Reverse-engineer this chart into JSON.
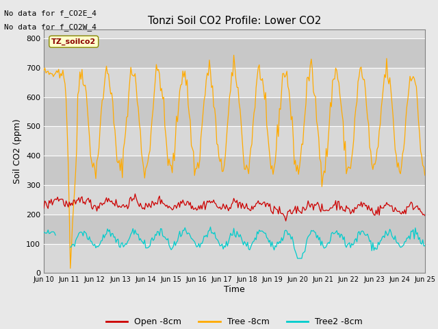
{
  "title": "Tonzi Soil CO2 Profile: Lower CO2",
  "xlabel": "Time",
  "ylabel": "Soil CO2 (ppm)",
  "ylim": [
    0,
    830
  ],
  "yticks": [
    0,
    100,
    200,
    300,
    400,
    500,
    600,
    700,
    800
  ],
  "bg_color": "#e8e8e8",
  "plot_bg_color": "#dcdcdc",
  "annotations": [
    "No data for f_CO2E_4",
    "No data for f_CO2W_4"
  ],
  "legend_label": "TZ_soilco2",
  "series_labels": [
    "Open -8cm",
    "Tree -8cm",
    "Tree2 -8cm"
  ],
  "series_colors": [
    "#cc0000",
    "#ffaa00",
    "#00cccc"
  ],
  "xtick_labels": [
    "Jun 10",
    "Jun 11",
    "Jun 12",
    "Jun 13",
    "Jun 14",
    "Jun 15",
    "Jun 16",
    "Jun 17",
    "Jun 18",
    "Jun 19",
    "Jun 20",
    "Jun 21",
    "Jun 22",
    "Jun 23",
    "Jun 24",
    "Jun 25"
  ],
  "band_colors": [
    "#d8d8d8",
    "#c8c8c8"
  ],
  "n_days": 15,
  "seed": 42
}
